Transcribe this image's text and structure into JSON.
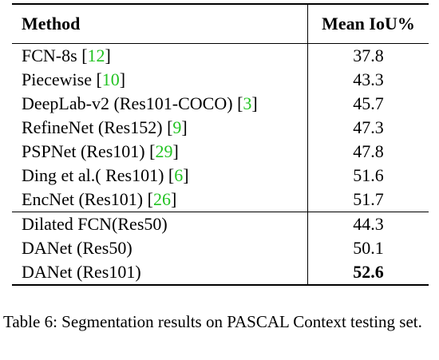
{
  "table": {
    "headers": [
      "Method",
      "Mean IoU%"
    ],
    "groups": [
      [
        {
          "method": "FCN-8s",
          "cite": "12",
          "value": "37.8"
        },
        {
          "method": "Piecewise",
          "cite": "10",
          "value": "43.3"
        },
        {
          "method": "DeepLab-v2 (Res101-COCO)",
          "cite": "3",
          "value": "45.7"
        },
        {
          "method": "RefineNet (Res152)",
          "cite": "9",
          "value": "47.3"
        },
        {
          "method": "PSPNet (Res101)",
          "cite": "29",
          "value": "47.8"
        },
        {
          "method": "Ding et al.( Res101)",
          "cite": "6",
          "value": "51.6"
        },
        {
          "method": "EncNet (Res101)",
          "cite": "26",
          "value": "51.7"
        }
      ],
      [
        {
          "method": "Dilated FCN(Res50)",
          "value": "44.3"
        },
        {
          "method": "DANet (Res50)",
          "value": "50.1"
        },
        {
          "method": "DANet (Res101)",
          "value": "52.6",
          "bold": true
        }
      ]
    ]
  },
  "caption": "Table 6: Segmentation results on PASCAL Context testing set."
}
